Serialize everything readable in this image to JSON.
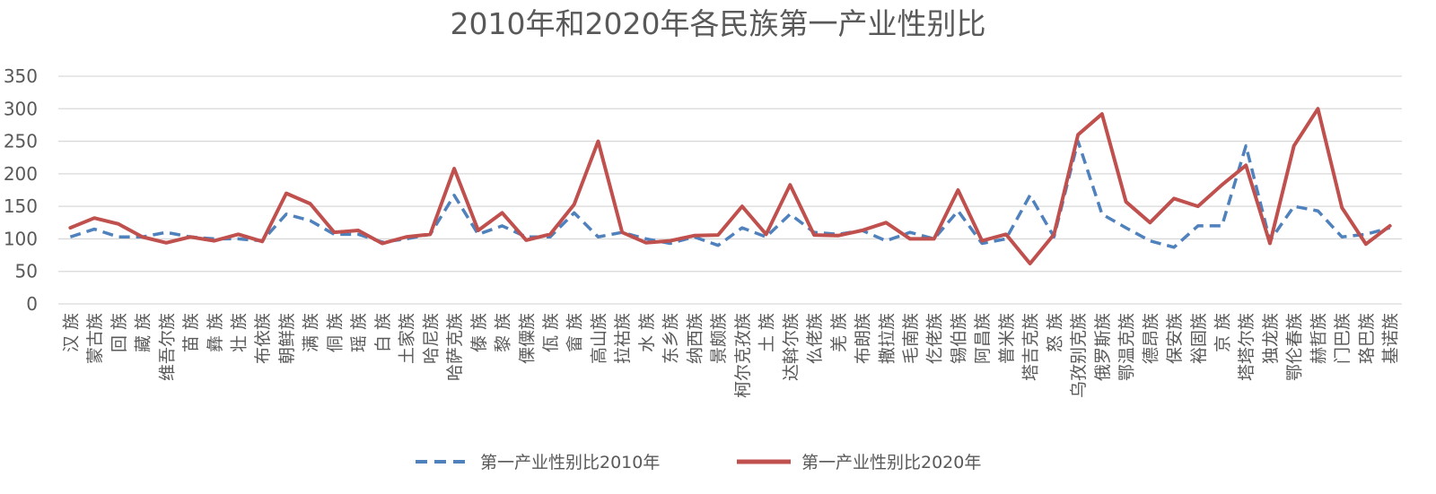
{
  "chart_data": {
    "type": "line",
    "title": "2010年和2020年各民族第一产业性别比",
    "categories": [
      "汉 族",
      "蒙古族",
      "回 族",
      "藏 族",
      "维吾尔族",
      "苗 族",
      "彝 族",
      "壮 族",
      "布依族",
      "朝鲜族",
      "满 族",
      "侗 族",
      "瑶 族",
      "白 族",
      "土家族",
      "哈尼族",
      "哈萨克族",
      "傣 族",
      "黎 族",
      "傈僳族",
      "佤 族",
      "畲 族",
      "高山族",
      "拉祜族",
      "水 族",
      "东乡族",
      "纳西族",
      "景颇族",
      "柯尔克孜族",
      "土 族",
      "达斡尔族",
      "仫佬族",
      "羌 族",
      "布朗族",
      "撒拉族",
      "毛南族",
      "仡佬族",
      "锡伯族",
      "阿昌族",
      "普米族",
      "塔吉克族",
      "怒 族",
      "乌孜别克族",
      "俄罗斯族",
      "鄂温克族",
      "德昂族",
      "保安族",
      "裕固族",
      "京 族",
      "塔塔尔族",
      "独龙族",
      "鄂伦春族",
      "赫哲族",
      "门巴族",
      "珞巴族",
      "基诺族"
    ],
    "series": [
      {
        "name": "第一产业性别比2010年",
        "color": "#4f81bd",
        "dash": "dashed",
        "values": [
          103,
          115,
          103,
          103,
          110,
          103,
          100,
          100,
          97,
          138,
          128,
          107,
          107,
          95,
          100,
          107,
          167,
          107,
          120,
          103,
          103,
          140,
          103,
          110,
          100,
          93,
          103,
          90,
          117,
          103,
          138,
          110,
          107,
          113,
          97,
          110,
          100,
          143,
          93,
          100,
          167,
          103,
          250,
          138,
          117,
          97,
          87,
          120,
          120,
          243,
          97,
          150,
          143,
          103,
          107,
          117
        ]
      },
      {
        "name": "第一产业性别比2020年",
        "color": "#c0504d",
        "dash": "solid",
        "values": [
          117,
          132,
          123,
          103,
          94,
          103,
          97,
          107,
          96,
          170,
          154,
          110,
          113,
          93,
          103,
          107,
          208,
          113,
          140,
          98,
          107,
          153,
          250,
          110,
          94,
          97,
          105,
          106,
          150,
          107,
          183,
          106,
          105,
          113,
          125,
          100,
          100,
          175,
          97,
          107,
          62,
          107,
          260,
          292,
          157,
          125,
          162,
          150,
          183,
          213,
          93,
          243,
          300,
          148,
          92,
          120
        ]
      }
    ],
    "ylim": [
      0,
      350
    ],
    "yticks": [
      0,
      50,
      100,
      150,
      200,
      250,
      300,
      350
    ],
    "grid": true,
    "legend_position": "bottom"
  }
}
